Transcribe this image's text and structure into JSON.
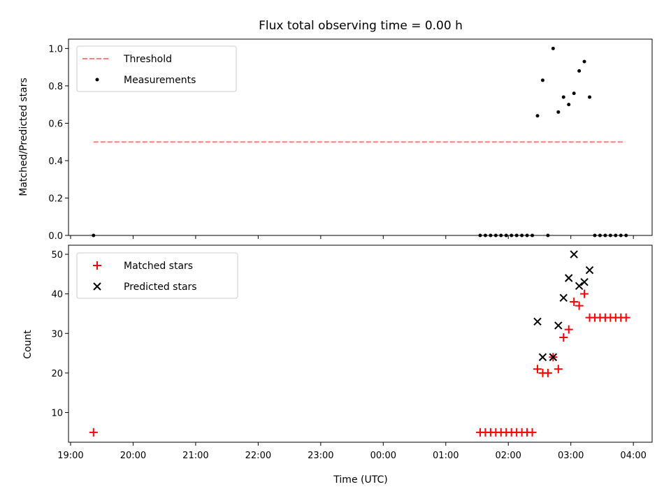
{
  "chart_data": [
    {
      "type": "scatter",
      "title": "Flux total observing time = 0.00 h",
      "ylabel": "Matched/Predicted stars",
      "xlabel": "",
      "xlim": [
        "18:58",
        "04:18"
      ],
      "ylim": [
        0,
        1.05
      ],
      "yticks": [
        "0.0",
        "0.2",
        "0.4",
        "0.6",
        "0.8",
        "1.0"
      ],
      "legend_position": "upper-left",
      "threshold": {
        "name": "Threshold",
        "value": 0.5,
        "x": [
          "19:22",
          "03:52"
        ],
        "color": "#ff7f7f"
      },
      "series": [
        {
          "name": "Measurements",
          "color": "#000000",
          "points": [
            [
              "19:22",
              0.0
            ],
            [
              "01:33",
              0.0
            ],
            [
              "01:38",
              0.0
            ],
            [
              "01:43",
              0.0
            ],
            [
              "01:48",
              0.0
            ],
            [
              "01:53",
              0.0
            ],
            [
              "01:58",
              0.0
            ],
            [
              "02:03",
              0.0
            ],
            [
              "02:08",
              0.0
            ],
            [
              "02:13",
              0.0
            ],
            [
              "02:18",
              0.0
            ],
            [
              "02:23",
              0.0
            ],
            [
              "02:28",
              0.64
            ],
            [
              "02:33",
              0.83
            ],
            [
              "02:38",
              0.0
            ],
            [
              "02:43",
              1.0
            ],
            [
              "02:48",
              0.66
            ],
            [
              "02:53",
              0.74
            ],
            [
              "02:58",
              0.7
            ],
            [
              "03:03",
              0.76
            ],
            [
              "03:08",
              0.88
            ],
            [
              "03:13",
              0.93
            ],
            [
              "03:18",
              0.74
            ],
            [
              "03:23",
              0.0
            ],
            [
              "03:28",
              0.0
            ],
            [
              "03:33",
              0.0
            ],
            [
              "03:38",
              0.0
            ],
            [
              "03:43",
              0.0
            ],
            [
              "03:48",
              0.0
            ],
            [
              "03:53",
              0.0
            ]
          ]
        }
      ]
    },
    {
      "type": "scatter",
      "title": "",
      "ylabel": "Count",
      "xlabel": "Time (UTC)",
      "xlim": [
        "18:58",
        "04:18"
      ],
      "ylim": [
        2.5,
        52.3
      ],
      "yticks": [
        "10",
        "20",
        "30",
        "40",
        "50"
      ],
      "xticks": [
        "19:00",
        "20:00",
        "21:00",
        "22:00",
        "23:00",
        "00:00",
        "01:00",
        "02:00",
        "03:00",
        "04:00"
      ],
      "legend_position": "upper-left",
      "series": [
        {
          "name": "Matched stars",
          "color": "#ff0000",
          "marker": "+",
          "points": [
            [
              "19:22",
              5
            ],
            [
              "01:33",
              5
            ],
            [
              "01:38",
              5
            ],
            [
              "01:43",
              5
            ],
            [
              "01:48",
              5
            ],
            [
              "01:53",
              5
            ],
            [
              "01:58",
              5
            ],
            [
              "02:03",
              5
            ],
            [
              "02:08",
              5
            ],
            [
              "02:13",
              5
            ],
            [
              "02:18",
              5
            ],
            [
              "02:23",
              5
            ],
            [
              "02:28",
              21
            ],
            [
              "02:33",
              20
            ],
            [
              "02:38",
              20
            ],
            [
              "02:43",
              24
            ],
            [
              "02:48",
              21
            ],
            [
              "02:53",
              29
            ],
            [
              "02:58",
              31
            ],
            [
              "03:03",
              38
            ],
            [
              "03:08",
              37
            ],
            [
              "03:13",
              40
            ],
            [
              "03:18",
              34
            ],
            [
              "03:23",
              34
            ],
            [
              "03:28",
              34
            ],
            [
              "03:33",
              34
            ],
            [
              "03:38",
              34
            ],
            [
              "03:43",
              34
            ],
            [
              "03:48",
              34
            ],
            [
              "03:53",
              34
            ]
          ]
        },
        {
          "name": "Predicted stars",
          "color": "#000000",
          "marker": "x",
          "points": [
            [
              "02:28",
              33
            ],
            [
              "02:33",
              24
            ],
            [
              "02:43",
              24
            ],
            [
              "02:48",
              32
            ],
            [
              "02:53",
              39
            ],
            [
              "02:58",
              44
            ],
            [
              "03:03",
              50
            ],
            [
              "03:08",
              42
            ],
            [
              "03:13",
              43
            ],
            [
              "03:18",
              46
            ]
          ]
        }
      ]
    }
  ]
}
